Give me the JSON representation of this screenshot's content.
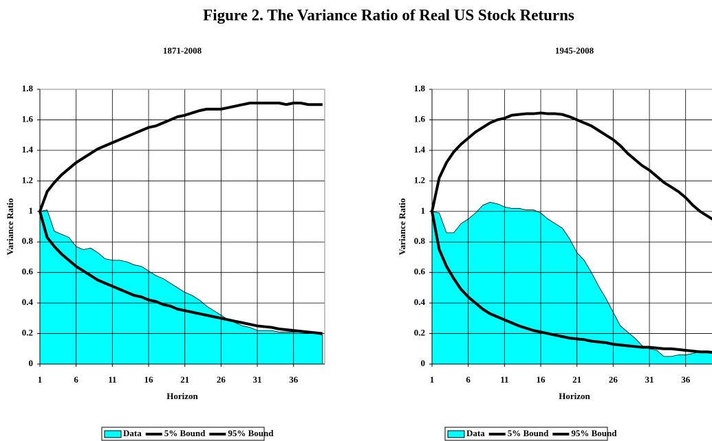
{
  "title": "Figure 2. The Variance Ratio of Real US Stock Returns",
  "chart_data": [
    {
      "type": "area-line",
      "title": "1871-2008",
      "xlabel": "Horizon",
      "ylabel": "Variance Ratio",
      "x": [
        1,
        2,
        3,
        4,
        5,
        6,
        7,
        8,
        9,
        10,
        11,
        12,
        13,
        14,
        15,
        16,
        17,
        18,
        19,
        20,
        21,
        22,
        23,
        24,
        25,
        26,
        27,
        28,
        29,
        30,
        31,
        32,
        33,
        34,
        35,
        36,
        37,
        38,
        39,
        40
      ],
      "xlim": [
        1,
        40.3
      ],
      "xticks": [
        1,
        6,
        11,
        16,
        21,
        26,
        31,
        36
      ],
      "ylim": [
        0,
        1.8
      ],
      "yticks": [
        0,
        0.2,
        0.4,
        0.6,
        0.8,
        1,
        1.2,
        1.4,
        1.6,
        1.8
      ],
      "grid": true,
      "series": [
        {
          "name": "Data",
          "style": "area",
          "color": "#00ffff",
          "values": [
            1.0,
            1.01,
            0.87,
            0.85,
            0.83,
            0.77,
            0.75,
            0.76,
            0.73,
            0.69,
            0.68,
            0.68,
            0.67,
            0.65,
            0.64,
            0.61,
            0.58,
            0.56,
            0.53,
            0.5,
            0.47,
            0.45,
            0.42,
            0.38,
            0.35,
            0.32,
            0.29,
            0.27,
            0.25,
            0.24,
            0.22,
            0.22,
            0.22,
            0.21,
            0.21,
            0.21,
            0.21,
            0.2,
            0.2,
            0.19
          ]
        },
        {
          "name": "5% Bound",
          "style": "line",
          "color": "#000000",
          "values": [
            1.0,
            0.83,
            0.77,
            0.72,
            0.68,
            0.64,
            0.61,
            0.58,
            0.55,
            0.53,
            0.51,
            0.49,
            0.47,
            0.45,
            0.44,
            0.42,
            0.41,
            0.39,
            0.38,
            0.36,
            0.35,
            0.34,
            0.33,
            0.32,
            0.31,
            0.3,
            0.29,
            0.28,
            0.27,
            0.26,
            0.25,
            0.245,
            0.24,
            0.23,
            0.225,
            0.22,
            0.215,
            0.21,
            0.205,
            0.2
          ]
        },
        {
          "name": "95% Bound",
          "style": "line",
          "color": "#000000",
          "values": [
            1.0,
            1.13,
            1.19,
            1.24,
            1.28,
            1.32,
            1.35,
            1.38,
            1.41,
            1.43,
            1.45,
            1.47,
            1.49,
            1.51,
            1.53,
            1.55,
            1.56,
            1.58,
            1.6,
            1.62,
            1.63,
            1.645,
            1.66,
            1.67,
            1.67,
            1.67,
            1.68,
            1.69,
            1.7,
            1.71,
            1.71,
            1.71,
            1.71,
            1.71,
            1.7,
            1.71,
            1.71,
            1.7,
            1.7,
            1.7
          ]
        }
      ]
    },
    {
      "type": "area-line",
      "title": "1945-2008",
      "xlabel": "Horizon",
      "ylabel": "Variance Ratio",
      "x": [
        1,
        2,
        3,
        4,
        5,
        6,
        7,
        8,
        9,
        10,
        11,
        12,
        13,
        14,
        15,
        16,
        17,
        18,
        19,
        20,
        21,
        22,
        23,
        24,
        25,
        26,
        27,
        28,
        29,
        30,
        31,
        32,
        33,
        34,
        35,
        36,
        37,
        38,
        39,
        40
      ],
      "xlim": [
        1,
        40.3
      ],
      "xticks": [
        1,
        6,
        11,
        16,
        21,
        26,
        31,
        36
      ],
      "ylim": [
        0,
        1.8
      ],
      "yticks": [
        0,
        0.2,
        0.4,
        0.6,
        0.8,
        1,
        1.2,
        1.4,
        1.6,
        1.8
      ],
      "grid": true,
      "series": [
        {
          "name": "Data",
          "style": "area",
          "color": "#00ffff",
          "values": [
            1.0,
            0.99,
            0.86,
            0.86,
            0.92,
            0.95,
            0.99,
            1.04,
            1.06,
            1.05,
            1.03,
            1.02,
            1.02,
            1.01,
            1.01,
            0.99,
            0.95,
            0.92,
            0.89,
            0.82,
            0.73,
            0.68,
            0.6,
            0.51,
            0.43,
            0.34,
            0.25,
            0.21,
            0.17,
            0.12,
            0.1,
            0.09,
            0.05,
            0.05,
            0.06,
            0.06,
            0.07,
            0.08,
            0.08,
            0.08
          ]
        },
        {
          "name": "5% Bound",
          "style": "line",
          "color": "#000000",
          "values": [
            1.0,
            0.75,
            0.64,
            0.56,
            0.49,
            0.44,
            0.4,
            0.36,
            0.33,
            0.31,
            0.29,
            0.27,
            0.25,
            0.235,
            0.22,
            0.21,
            0.2,
            0.19,
            0.18,
            0.17,
            0.165,
            0.16,
            0.15,
            0.145,
            0.14,
            0.13,
            0.125,
            0.12,
            0.115,
            0.11,
            0.11,
            0.105,
            0.1,
            0.1,
            0.095,
            0.09,
            0.085,
            0.08,
            0.08,
            0.075
          ]
        },
        {
          "name": "95% Bound",
          "style": "line",
          "color": "#000000",
          "values": [
            1.0,
            1.22,
            1.32,
            1.39,
            1.44,
            1.48,
            1.52,
            1.55,
            1.58,
            1.6,
            1.61,
            1.63,
            1.635,
            1.64,
            1.64,
            1.645,
            1.64,
            1.64,
            1.635,
            1.62,
            1.6,
            1.58,
            1.56,
            1.53,
            1.5,
            1.47,
            1.43,
            1.38,
            1.34,
            1.3,
            1.27,
            1.23,
            1.19,
            1.16,
            1.13,
            1.09,
            1.04,
            1.0,
            0.97,
            0.94
          ]
        }
      ]
    }
  ]
}
